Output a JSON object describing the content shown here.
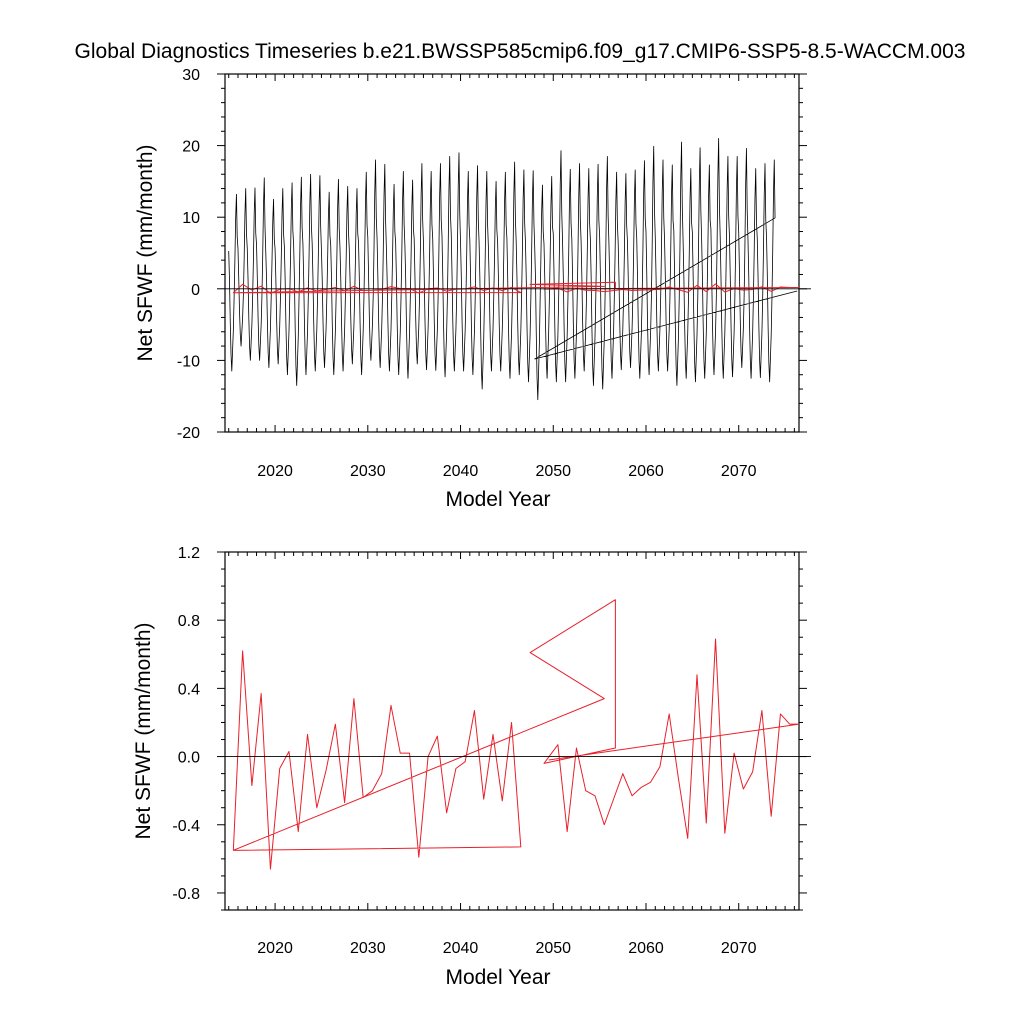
{
  "figure": {
    "title": "Global Diagnostics Timeseries b.e21.BWSSP585cmip6.f09_g17.CMIP6-SSP5-8.5-WACCM.003"
  },
  "chart_data": [
    {
      "type": "line",
      "xlabel": "Model Year",
      "ylabel": "Net SFWF (mm/month)",
      "xlim": [
        2014.6,
        2076.5
      ],
      "ylim": [
        -20,
        30
      ],
      "xticks": [
        2020,
        2030,
        2040,
        2050,
        2060,
        2070
      ],
      "xtick_labels": [
        "2020",
        "2030",
        "2040",
        "2050",
        "2060",
        "2070"
      ],
      "yticks": [
        -20,
        -10,
        0,
        10,
        20,
        30
      ],
      "ytick_labels": [
        "-20",
        "-10",
        "0",
        "10",
        "20",
        "30"
      ],
      "zero_line": true,
      "series": [
        {
          "color": "#000000",
          "kind": "monthly",
          "peaks": [
            13.2,
            14,
            14.1,
            15.5,
            12.5,
            14,
            14.8,
            15.6,
            16,
            15.8,
            13.5,
            15.3,
            14.3,
            14,
            16.3,
            18,
            17.4,
            14.6,
            16.4,
            15.2,
            17.5,
            16.4,
            17.5,
            18.5,
            19,
            16.4,
            17.2,
            16.4,
            15,
            16.3,
            17.7,
            16.6,
            16.5,
            14.5,
            15.7,
            19.3,
            16.7,
            17.5,
            16.8,
            17.4,
            18.5,
            16.3,
            16.1,
            16.6,
            17.9,
            19.9,
            18,
            17.3,
            20.5,
            16.8,
            19.7,
            17.3,
            21,
            18.5,
            18.5,
            19.6,
            16.8,
            17.5,
            18
          ],
          "troughs": [
            -11.5,
            -8,
            -10,
            -10,
            -11,
            -10.5,
            -12,
            -13.5,
            -12,
            -11.5,
            -11,
            -12,
            -11.5,
            -10.5,
            -12,
            -10,
            -11,
            -11.5,
            -12,
            -12.5,
            -10.5,
            -11.3,
            -11.4,
            -12.3,
            -11.5,
            -11.5,
            -12,
            -14,
            -11.5,
            -11.5,
            -12.5,
            -12,
            -13,
            -15.5,
            -12.5,
            -13,
            -13,
            -12.5,
            -11.5,
            -13.5,
            -14,
            -12.5,
            -11.3,
            -11,
            -12.5,
            -12,
            -11.5,
            -11.5,
            -13.5,
            -12.5,
            -13,
            -12.5,
            -12,
            -12.5,
            -12.3,
            -11,
            -12.5,
            -12.4,
            -13
          ]
        },
        {
          "color": "#e8202a",
          "kind": "annual",
          "ref": "chart_data.1.series.0"
        }
      ]
    },
    {
      "type": "line",
      "xlabel": "Model Year",
      "ylabel": "Net SFWF (mm/month)",
      "xlim": [
        2014.6,
        2076.5
      ],
      "ylim": [
        -0.9,
        1.2
      ],
      "xticks": [
        2020,
        2030,
        2040,
        2050,
        2060,
        2070
      ],
      "xtick_labels": [
        "2020",
        "2030",
        "2040",
        "2050",
        "2060",
        "2070"
      ],
      "yticks": [
        -0.8,
        -0.4,
        0.0,
        0.4,
        0.8,
        1.2
      ],
      "ytick_labels": [
        "-0.8",
        "-0.4",
        "0.0",
        "0.4",
        "0.8",
        "1.2"
      ],
      "zero_line": true,
      "series": [
        {
          "color": "#e8202a",
          "x": [
            2015.5,
            2016.5,
            2017.5,
            2018.5,
            2019.5,
            2020.5,
            2021.5,
            2022.5,
            2023.5,
            2024.5,
            2025.5,
            2026.5,
            2027.5,
            2028.5,
            2029.5,
            2030.5,
            2031.5,
            2032.5,
            2033.5,
            2034.5,
            2035.5,
            2036.5,
            2037.5,
            2038.5,
            2039.5,
            2040.5,
            2041.5,
            2042.5,
            2043.5,
            2044.5,
            2045.5,
            2046.5,
            2015.5,
            2055.5,
            2047.5,
            2056.7,
            2056.7,
            2049.0,
            2050.5,
            2051.5,
            2052.5,
            2053.5,
            2054.5,
            2055.5,
            2057.5,
            2058.5,
            2059.5,
            2060.5,
            2061.5,
            2062.5,
            2063.5,
            2064.5,
            2065.5,
            2066.5,
            2067.5,
            2068.5,
            2069.5,
            2070.5,
            2071.5,
            2072.5,
            2073.5,
            2074.5,
            2075.5,
            2076.5,
            2049.5
          ],
          "y": [
            -0.55,
            0.62,
            -0.17,
            0.37,
            -0.66,
            -0.07,
            0.03,
            -0.44,
            0.13,
            -0.3,
            -0.08,
            0.19,
            -0.27,
            0.34,
            -0.24,
            -0.2,
            -0.1,
            0.3,
            0.02,
            0.02,
            -0.59,
            0.0,
            0.12,
            -0.33,
            -0.07,
            -0.03,
            0.27,
            -0.25,
            0.13,
            -0.26,
            0.2,
            -0.53,
            -0.55,
            0.34,
            0.61,
            0.92,
            0.05,
            -0.04,
            0.07,
            -0.44,
            0.05,
            -0.2,
            -0.23,
            -0.4,
            -0.1,
            -0.23,
            -0.18,
            -0.15,
            -0.06,
            0.25,
            -0.13,
            -0.48,
            0.48,
            -0.39,
            0.69,
            -0.45,
            0.02,
            -0.19,
            -0.09,
            0.27,
            -0.35,
            0.25,
            0.19,
            0.19,
            -0.02
          ]
        }
      ]
    }
  ]
}
